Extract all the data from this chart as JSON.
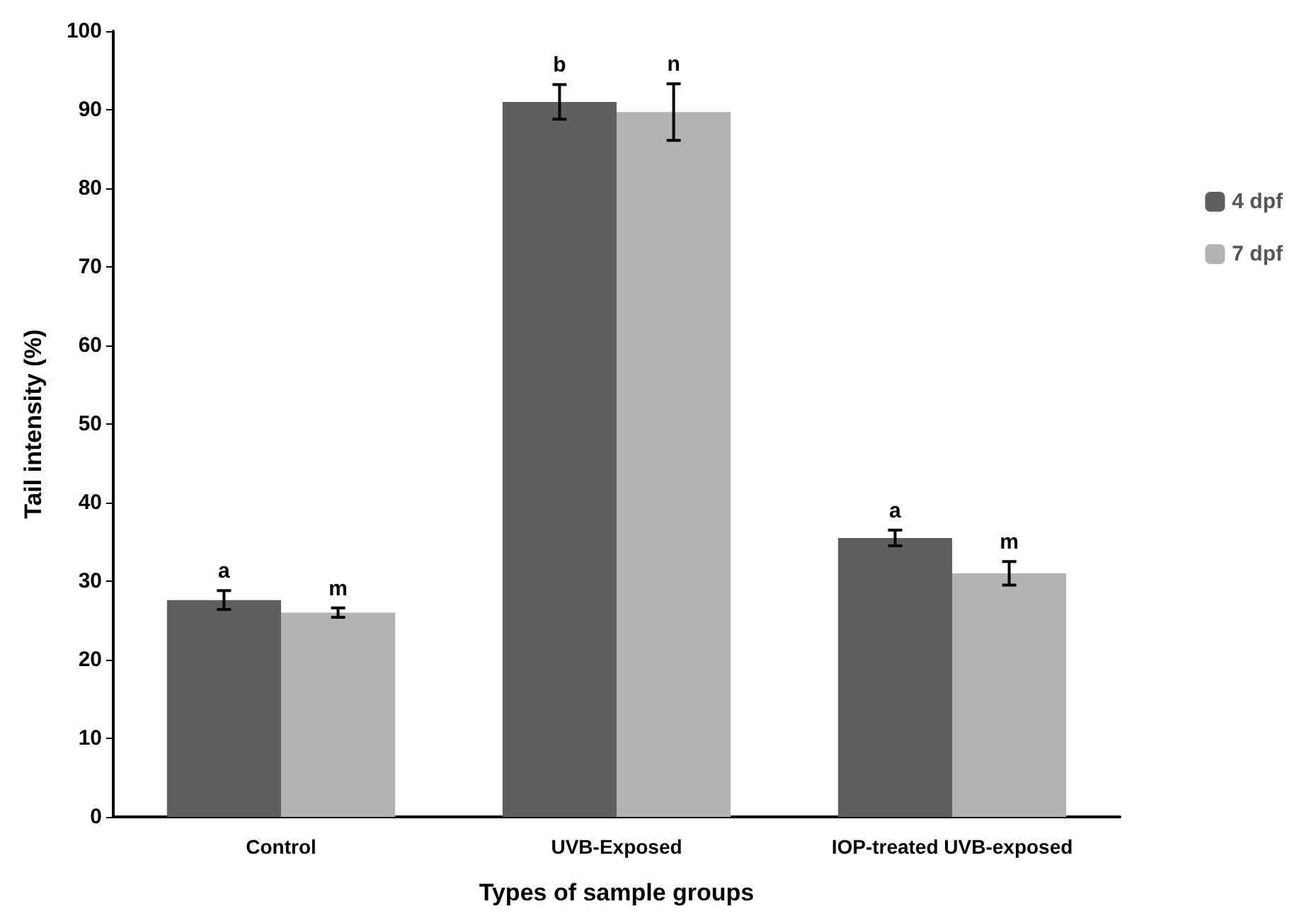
{
  "chart_data": {
    "type": "bar",
    "xlabel": "Types of sample groups",
    "ylabel": "Tail intensity (%)",
    "categories": [
      "Control",
      "UVB-Exposed",
      "IOP-treated UVB-exposed"
    ],
    "series": [
      {
        "name": "4 dpf",
        "color": "#5f5f5f",
        "values": [
          27.6,
          91.0,
          35.5
        ],
        "errors": [
          1.2,
          2.2,
          1.0
        ],
        "value_labels": [
          "a",
          "b",
          "a"
        ]
      },
      {
        "name": "7 dpf",
        "color": "#b3b3b3",
        "values": [
          26.0,
          89.7,
          31.0
        ],
        "errors": [
          0.6,
          3.6,
          1.5
        ],
        "value_labels": [
          "m",
          "n",
          "m"
        ]
      }
    ],
    "ylim": [
      0,
      100
    ],
    "yticks": [
      0,
      10,
      20,
      30,
      40,
      50,
      60,
      70,
      80,
      90,
      100
    ],
    "grid": false,
    "legend": "right"
  }
}
